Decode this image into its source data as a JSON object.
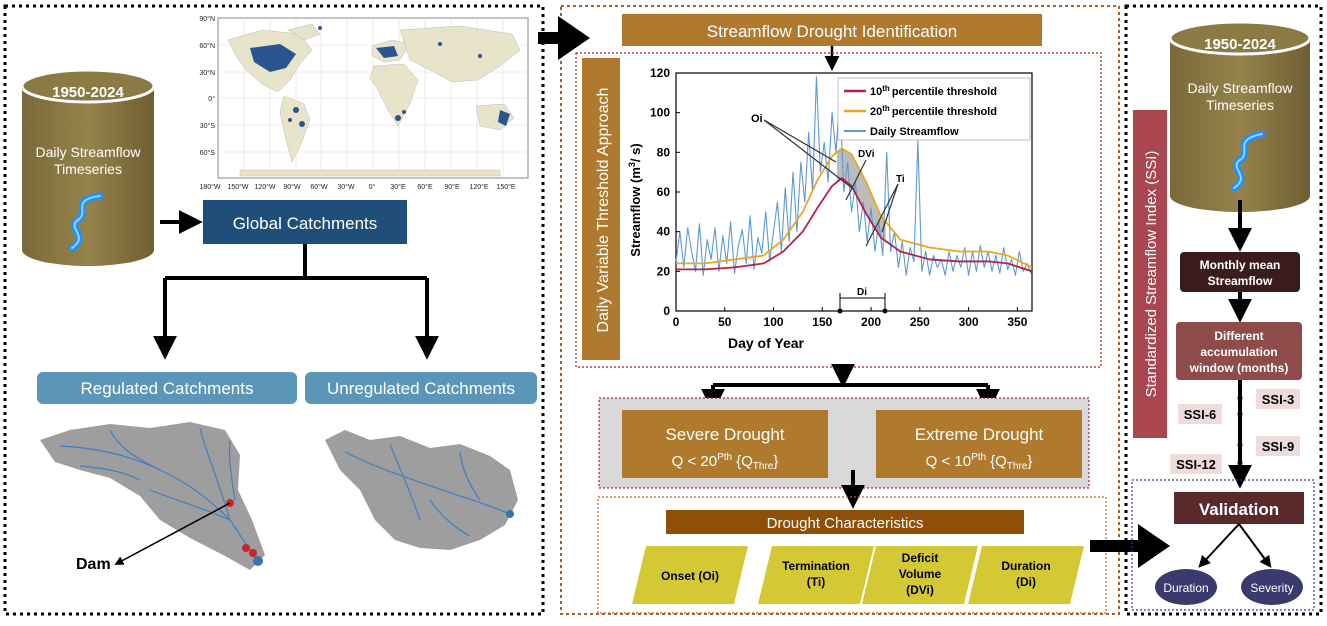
{
  "left_panel": {
    "cylinder": {
      "years": "1950-2024",
      "line1": "Daily Streamflow",
      "line2": "Timeseries"
    },
    "map_lat_labels": [
      "90°N",
      "60°N",
      "30°N",
      "0°",
      "30°S",
      "60°S"
    ],
    "map_lon_labels": [
      "180°W",
      "150°W",
      "120°W",
      "90°W",
      "60°W",
      "30°W",
      "0°",
      "30°E",
      "60°E",
      "90°E",
      "120°E",
      "150°E"
    ],
    "global_catchments": "Global Catchments",
    "regulated": "Regulated Catchments",
    "unregulated": "Unregulated Catchments",
    "dam_label": "Dam"
  },
  "middle_panel": {
    "header": "Streamflow Drought Identification",
    "side_label": "Daily Variable Threshold Approach",
    "legend": {
      "p10": "percentile threshold",
      "p20": "percentile threshold",
      "daily": "Daily Streamflow",
      "p10_num": "10",
      "p20_num": "20",
      "sup": "th"
    },
    "annotations": {
      "oi": "Oi",
      "dvi": "DVi",
      "ti": "Ti",
      "di": "Di"
    },
    "severe": {
      "title": "Severe Drought",
      "cond": "Q < 20",
      "sup": "Pth",
      "thre": "{Q",
      "thre_sub": "Thre",
      "close": "}"
    },
    "extreme": {
      "title": "Extreme Drought",
      "cond": "Q < 10",
      "sup": "Pth",
      "thre": "{Q",
      "thre_sub": "Thre",
      "close": "}"
    },
    "characteristics_header": "Drought Characteristics",
    "characteristics": [
      {
        "line1": "Onset (Oi)"
      },
      {
        "line1": "Termination",
        "line2": "(Ti)"
      },
      {
        "line1": "Deficit",
        "line2": "Volume",
        "line3": "(DVi)"
      },
      {
        "line1": "Duration",
        "line2": "(Di)"
      }
    ]
  },
  "right_panel": {
    "cylinder": {
      "years": "1950-2024",
      "line1": "Daily Streamflow",
      "line2": "Timeseries"
    },
    "side_label": "Standardized Streamflow Index (SSI)",
    "monthly": {
      "line1": "Monthly mean",
      "line2": "Streamflow"
    },
    "window": {
      "line1": "Different",
      "line2": "accumulation",
      "line3": "window (months)"
    },
    "ssi": [
      "SSI-3",
      "SSI-6",
      "SSI-9",
      "SSI-12"
    ],
    "validation": "Validation",
    "duration": "Duration",
    "severity": "Severity"
  },
  "chart_data": {
    "type": "line",
    "xlabel": "Day of Year",
    "ylabel": "Streamflow (m",
    "ylabel_sup": "3",
    "ylabel_end": "/ s)",
    "xlim": [
      0,
      365
    ],
    "ylim": [
      0,
      120
    ],
    "xticks": [
      0,
      50,
      100,
      150,
      200,
      250,
      300,
      350
    ],
    "yticks": [
      0,
      20,
      40,
      60,
      80,
      100,
      120
    ],
    "colors": {
      "p10": "#b5214a",
      "p20": "#e8a823",
      "daily": "#5b9bd5"
    },
    "series": [
      {
        "key": "p10",
        "x": [
          0,
          30,
          60,
          90,
          110,
          130,
          145,
          160,
          170,
          180,
          195,
          210,
          230,
          260,
          290,
          320,
          340,
          365
        ],
        "y": [
          21,
          21,
          22,
          24,
          30,
          40,
          52,
          63,
          67,
          63,
          49,
          37,
          30,
          26,
          25,
          25,
          24,
          20
        ]
      },
      {
        "key": "p20",
        "x": [
          0,
          30,
          60,
          90,
          110,
          130,
          145,
          160,
          170,
          180,
          195,
          210,
          230,
          260,
          290,
          320,
          340,
          365
        ],
        "y": [
          24,
          24,
          26,
          28,
          36,
          50,
          66,
          78,
          82,
          79,
          65,
          48,
          36,
          32,
          30,
          30,
          28,
          22
        ]
      },
      {
        "key": "daily",
        "x": [
          0,
          4,
          8,
          12,
          16,
          20,
          24,
          28,
          32,
          36,
          40,
          44,
          48,
          52,
          56,
          60,
          64,
          68,
          72,
          76,
          80,
          84,
          88,
          92,
          96,
          100,
          104,
          108,
          112,
          116,
          120,
          124,
          128,
          132,
          136,
          140,
          144,
          148,
          152,
          156,
          160,
          164,
          168,
          172,
          176,
          180,
          184,
          188,
          192,
          196,
          200,
          204,
          208,
          212,
          216,
          220,
          224,
          228,
          232,
          236,
          240,
          244,
          248,
          252,
          256,
          260,
          264,
          268,
          272,
          276,
          280,
          284,
          288,
          292,
          296,
          300,
          304,
          308,
          312,
          316,
          320,
          324,
          328,
          332,
          336,
          340,
          344,
          348,
          352,
          356,
          360,
          364
        ],
        "y": [
          25,
          40,
          22,
          42,
          30,
          20,
          44,
          18,
          36,
          26,
          42,
          20,
          38,
          24,
          45,
          19,
          33,
          41,
          24,
          48,
          21,
          37,
          29,
          50,
          25,
          40,
          55,
          30,
          62,
          35,
          70,
          40,
          75,
          55,
          90,
          60,
          118,
          70,
          85,
          65,
          100,
          80,
          108,
          60,
          75,
          50,
          65,
          40,
          55,
          35,
          52,
          30,
          45,
          28,
          80,
          30,
          40,
          22,
          35,
          18,
          32,
          25,
          86,
          20,
          30,
          18,
          28,
          22,
          26,
          18,
          30,
          20,
          28,
          22,
          32,
          18,
          30,
          20,
          33,
          22,
          30,
          20,
          28,
          19,
          32,
          21,
          26,
          18,
          30,
          20,
          24,
          19
        ]
      }
    ]
  }
}
